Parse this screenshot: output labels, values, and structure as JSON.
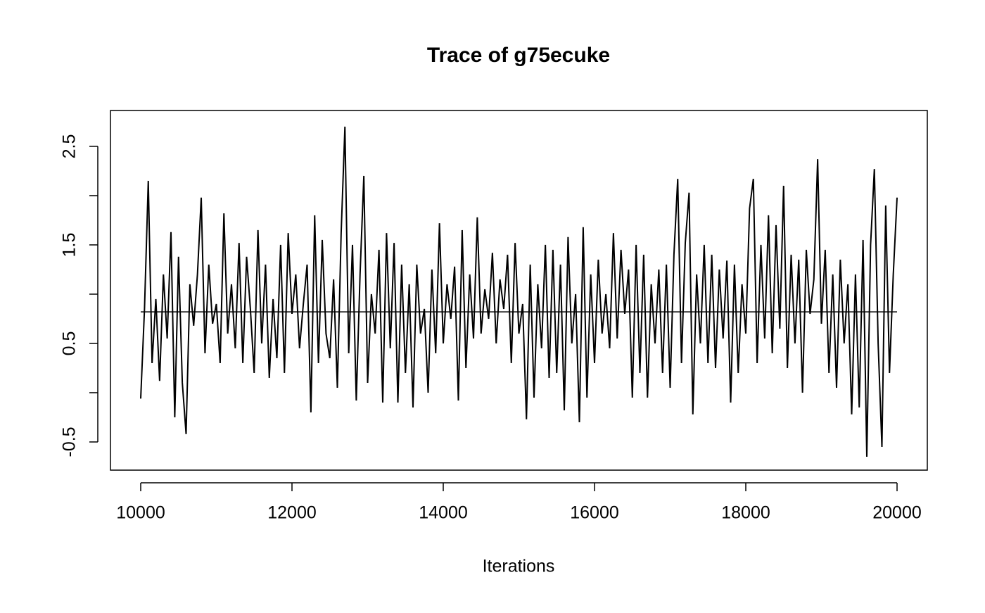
{
  "chart_data": {
    "type": "line",
    "title": "Trace of g75ecuke",
    "x_label": "Iterations",
    "color": "#000000",
    "reference_line": 0.82,
    "xlim": [
      9600,
      20400
    ],
    "xticks": [
      10000,
      12000,
      14000,
      16000,
      18000,
      20000
    ],
    "ylim": [
      -0.786,
      2.864
    ],
    "yticks": [
      -0.5,
      0.5,
      1.5,
      2.5
    ],
    "yminor_ticks": [
      0,
      1,
      2
    ],
    "x": [
      10000,
      10050,
      10100,
      10150,
      10200,
      10250,
      10300,
      10350,
      10400,
      10450,
      10500,
      10550,
      10600,
      10650,
      10700,
      10750,
      10800,
      10850,
      10900,
      10950,
      11000,
      11050,
      11100,
      11150,
      11200,
      11250,
      11300,
      11350,
      11400,
      11450,
      11500,
      11550,
      11600,
      11650,
      11700,
      11750,
      11800,
      11850,
      11900,
      11950,
      12000,
      12050,
      12100,
      12150,
      12200,
      12250,
      12300,
      12350,
      12400,
      12450,
      12500,
      12550,
      12600,
      12650,
      12700,
      12750,
      12800,
      12850,
      12900,
      12950,
      13000,
      13050,
      13100,
      13150,
      13200,
      13250,
      13300,
      13350,
      13400,
      13450,
      13500,
      13550,
      13600,
      13650,
      13700,
      13750,
      13800,
      13850,
      13900,
      13950,
      14000,
      14050,
      14100,
      14150,
      14200,
      14250,
      14300,
      14350,
      14400,
      14450,
      14500,
      14550,
      14600,
      14650,
      14700,
      14750,
      14800,
      14850,
      14900,
      14950,
      15000,
      15050,
      15100,
      15150,
      15200,
      15250,
      15300,
      15350,
      15400,
      15450,
      15500,
      15550,
      15600,
      15650,
      15700,
      15750,
      15800,
      15850,
      15900,
      15950,
      16000,
      16050,
      16100,
      16150,
      16200,
      16250,
      16300,
      16350,
      16400,
      16450,
      16500,
      16550,
      16600,
      16650,
      16700,
      16750,
      16800,
      16850,
      16900,
      16950,
      17000,
      17050,
      17100,
      17150,
      17200,
      17250,
      17300,
      17350,
      17400,
      17450,
      17500,
      17550,
      17600,
      17650,
      17700,
      17750,
      17800,
      17850,
      17900,
      17950,
      18000,
      18050,
      18100,
      18150,
      18200,
      18250,
      18300,
      18350,
      18400,
      18450,
      18500,
      18550,
      18600,
      18650,
      18700,
      18750,
      18800,
      18850,
      18900,
      18950,
      19000,
      19050,
      19100,
      19150,
      19200,
      19250,
      19300,
      19350,
      19400,
      19450,
      19500,
      19550,
      19600,
      19650,
      19700,
      19750,
      19800,
      19850,
      19900,
      19950,
      20000
    ],
    "values": [
      -0.06,
      0.85,
      2.15,
      0.3,
      0.95,
      0.12,
      1.2,
      0.55,
      1.63,
      -0.25,
      1.38,
      0.1,
      -0.42,
      1.1,
      0.68,
      1.2,
      1.98,
      0.4,
      1.3,
      0.7,
      0.9,
      0.3,
      1.82,
      0.6,
      1.1,
      0.45,
      1.52,
      0.3,
      1.38,
      0.85,
      0.2,
      1.65,
      0.5,
      1.3,
      0.15,
      0.95,
      0.35,
      1.5,
      0.2,
      1.62,
      0.8,
      1.2,
      0.45,
      0.9,
      1.3,
      -0.2,
      1.8,
      0.3,
      1.55,
      0.6,
      0.35,
      1.15,
      0.05,
      1.62,
      2.7,
      0.4,
      1.5,
      -0.08,
      1.2,
      2.2,
      0.1,
      1.0,
      0.6,
      1.45,
      -0.1,
      1.62,
      0.45,
      1.52,
      -0.1,
      1.3,
      0.2,
      1.1,
      -0.15,
      1.3,
      0.6,
      0.85,
      0.0,
      1.25,
      0.4,
      1.72,
      0.5,
      1.1,
      0.75,
      1.28,
      -0.08,
      1.65,
      0.25,
      1.2,
      0.55,
      1.78,
      0.6,
      1.05,
      0.75,
      1.42,
      0.5,
      1.15,
      0.85,
      1.4,
      0.3,
      1.52,
      0.6,
      0.9,
      -0.27,
      1.3,
      -0.05,
      1.1,
      0.45,
      1.5,
      0.15,
      1.45,
      0.2,
      1.3,
      -0.18,
      1.58,
      0.5,
      1.0,
      -0.3,
      1.68,
      -0.05,
      1.2,
      0.3,
      1.35,
      0.6,
      1.0,
      0.45,
      1.62,
      0.55,
      1.45,
      0.8,
      1.25,
      -0.05,
      1.5,
      0.2,
      1.4,
      -0.05,
      1.1,
      0.5,
      1.25,
      0.2,
      1.3,
      0.05,
      1.4,
      2.17,
      0.3,
      1.52,
      2.03,
      -0.22,
      1.2,
      0.5,
      1.5,
      0.3,
      1.4,
      0.25,
      1.25,
      0.55,
      1.34,
      -0.1,
      1.3,
      0.2,
      1.1,
      0.6,
      1.87,
      2.17,
      0.3,
      1.5,
      0.55,
      1.8,
      0.4,
      1.7,
      0.65,
      2.1,
      0.25,
      1.4,
      0.5,
      1.35,
      0.0,
      1.45,
      0.8,
      1.15,
      2.37,
      0.7,
      1.45,
      0.2,
      1.2,
      0.05,
      1.35,
      0.5,
      1.1,
      -0.22,
      1.2,
      -0.15,
      1.55,
      -0.65,
      1.5,
      2.27,
      0.5,
      -0.55,
      1.9,
      0.2,
      1.2,
      1.98
    ]
  }
}
